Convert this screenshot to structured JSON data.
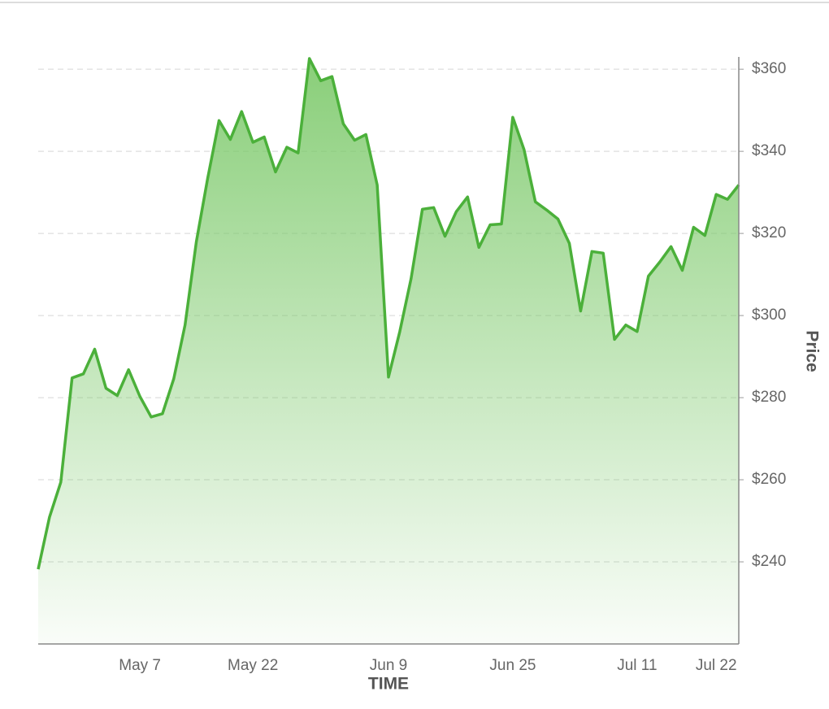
{
  "chart_data": {
    "type": "area",
    "x_label": "TIME",
    "y_label": "Price",
    "categories": [
      null,
      null,
      null,
      null,
      null,
      null,
      null,
      null,
      null,
      "May 7",
      null,
      null,
      null,
      null,
      null,
      null,
      null,
      null,
      null,
      "May 22",
      null,
      null,
      null,
      null,
      null,
      null,
      null,
      null,
      null,
      null,
      null,
      "Jun 9",
      null,
      null,
      null,
      null,
      null,
      null,
      null,
      null,
      null,
      null,
      "Jun 25",
      null,
      null,
      null,
      null,
      null,
      null,
      null,
      null,
      null,
      null,
      "Jul 11",
      null,
      null,
      null,
      null,
      null,
      null,
      "Jul 22",
      null,
      null
    ],
    "values": [
      238.2,
      250.9,
      259.4,
      284.8,
      285.8,
      291.8,
      282.3,
      280.5,
      286.8,
      280.3,
      275.3,
      276.1,
      284.6,
      297.7,
      318.0,
      333.4,
      347.5,
      342.9,
      349.7,
      342.2,
      343.5,
      335.0,
      341.0,
      339.6,
      362.6,
      357.2,
      358.2,
      346.7,
      342.7,
      344.1,
      331.8,
      285.0,
      296.1,
      309.0,
      325.9,
      326.3,
      319.3,
      325.3,
      328.9,
      316.6,
      322.1,
      322.3,
      348.3,
      340.4,
      327.7,
      325.7,
      323.5,
      317.6,
      301.1,
      315.6,
      315.2,
      294.2,
      297.7,
      296.1,
      309.6,
      313.0,
      316.8,
      311.0,
      321.5,
      319.5,
      329.5,
      328.3,
      331.8
    ],
    "color": "#4bb03a",
    "ylim": [
      220,
      363
    ],
    "yticks": [
      {
        "value": 240,
        "label": "$240"
      },
      {
        "value": 260,
        "label": "$260"
      },
      {
        "value": 280,
        "label": "$280"
      },
      {
        "value": 300,
        "label": "$300"
      },
      {
        "value": 320,
        "label": "$320"
      },
      {
        "value": 340,
        "label": "$340"
      },
      {
        "value": 360,
        "label": "$360"
      }
    ],
    "grid": true,
    "y_axis_side": "right"
  }
}
